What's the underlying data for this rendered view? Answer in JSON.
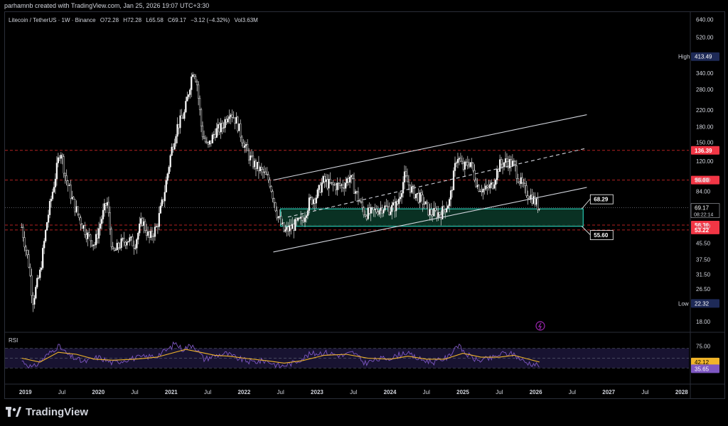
{
  "header": {
    "attribution": "parhamnb created with TradingView.com, Jan 25, 2026 19:07 UTC+3:30"
  },
  "legend": {
    "symbol": "Litecoin / TetherUS · 1W · Binance",
    "open": "O72.28",
    "high": "H72.28",
    "low": "L65.58",
    "close": "C69.17",
    "change": "−3.12 (−4.32%)",
    "volume": "Vol3.63M"
  },
  "colors": {
    "up": "#ffffff",
    "down": "#ffffff",
    "resistance_dash": "#b22222",
    "zone_fill": "#0b3d2c",
    "zone_border": "#26c6b0",
    "channel": "#d1d4dc",
    "rsi_line": "#7e57c2",
    "rsi_ma": "#f0b429",
    "high_tag": "#1e2a57",
    "red_tag": "#f23645",
    "rsi_ma_tag": "#f0b429",
    "rsi_tag": "#7e57c2"
  },
  "chart_data": {
    "type": "candlestick",
    "symbol": "LTCUSDT",
    "interval": "1W",
    "y_scale": "log",
    "y_ticks": [
      "640.00",
      "520.00",
      "420.00",
      "340.00",
      "280.00",
      "220.00",
      "180.00",
      "150.00",
      "120.00",
      "96.00",
      "84.00",
      "55.60",
      "45.50",
      "37.50",
      "31.50",
      "26.50",
      "18.00"
    ],
    "y_tick_values": [
      640,
      520,
      420,
      340,
      280,
      220,
      180,
      150,
      120,
      96,
      84,
      55.6,
      45.5,
      37.5,
      31.5,
      26.5,
      18
    ],
    "x_ticks": [
      "2019",
      "Jul",
      "2020",
      "Jul",
      "2021",
      "Jul",
      "2022",
      "Jul",
      "2023",
      "Jul",
      "2024",
      "Jul",
      "2025",
      "Jul",
      "2026",
      "Jul",
      "2027",
      "Jul",
      "2028"
    ],
    "x_tick_values": [
      2019.0,
      2019.5,
      2020.0,
      2020.5,
      2021.0,
      2021.5,
      2022.0,
      2022.5,
      2023.0,
      2023.5,
      2024.0,
      2024.5,
      2025.0,
      2025.5,
      2026.0,
      2026.5,
      2027.0,
      2027.5,
      2028.0
    ],
    "price_path": [
      [
        2018.95,
        55
      ],
      [
        2019.05,
        35
      ],
      [
        2019.1,
        23
      ],
      [
        2019.2,
        32
      ],
      [
        2019.3,
        60
      ],
      [
        2019.4,
        95
      ],
      [
        2019.48,
        140
      ],
      [
        2019.55,
        100
      ],
      [
        2019.65,
        75
      ],
      [
        2019.75,
        60
      ],
      [
        2019.85,
        50
      ],
      [
        2019.95,
        45
      ],
      [
        2020.05,
        62
      ],
      [
        2020.12,
        75
      ],
      [
        2020.2,
        40
      ],
      [
        2020.3,
        45
      ],
      [
        2020.4,
        48
      ],
      [
        2020.5,
        45
      ],
      [
        2020.6,
        60
      ],
      [
        2020.7,
        48
      ],
      [
        2020.8,
        55
      ],
      [
        2020.9,
        80
      ],
      [
        2021.0,
        135
      ],
      [
        2021.08,
        180
      ],
      [
        2021.18,
        210
      ],
      [
        2021.3,
        360
      ],
      [
        2021.35,
        310
      ],
      [
        2021.42,
        170
      ],
      [
        2021.5,
        140
      ],
      [
        2021.6,
        170
      ],
      [
        2021.7,
        180
      ],
      [
        2021.8,
        220
      ],
      [
        2021.9,
        190
      ],
      [
        2022.0,
        145
      ],
      [
        2022.1,
        120
      ],
      [
        2022.25,
        105
      ],
      [
        2022.35,
        95
      ],
      [
        2022.45,
        65
      ],
      [
        2022.55,
        52
      ],
      [
        2022.65,
        55
      ],
      [
        2022.8,
        60
      ],
      [
        2022.9,
        75
      ],
      [
        2023.0,
        80
      ],
      [
        2023.08,
        95
      ],
      [
        2023.2,
        90
      ],
      [
        2023.35,
        90
      ],
      [
        2023.45,
        100
      ],
      [
        2023.55,
        80
      ],
      [
        2023.65,
        65
      ],
      [
        2023.75,
        65
      ],
      [
        2023.9,
        70
      ],
      [
        2024.0,
        68
      ],
      [
        2024.1,
        72
      ],
      [
        2024.2,
        100
      ],
      [
        2024.3,
        85
      ],
      [
        2024.45,
        75
      ],
      [
        2024.55,
        65
      ],
      [
        2024.7,
        65
      ],
      [
        2024.82,
        75
      ],
      [
        2024.92,
        130
      ],
      [
        2025.0,
        110
      ],
      [
        2025.1,
        120
      ],
      [
        2025.2,
        90
      ],
      [
        2025.3,
        85
      ],
      [
        2025.4,
        90
      ],
      [
        2025.5,
        115
      ],
      [
        2025.6,
        120
      ],
      [
        2025.7,
        115
      ],
      [
        2025.78,
        95
      ],
      [
        2025.85,
        85
      ],
      [
        2025.95,
        78
      ],
      [
        2026.05,
        69.17
      ]
    ],
    "levels": [
      {
        "label": "136.39",
        "value": 136.39
      },
      {
        "label": "96.00",
        "value": 96.0
      },
      {
        "label": "56.36",
        "value": 56.36
      },
      {
        "label": "53.22",
        "value": 53.22
      }
    ],
    "current_price": {
      "label": "69.17",
      "value": 69.17,
      "countdown": "08:22:14"
    },
    "high_tag": {
      "label": "High",
      "value_label": "413.49",
      "value": 413.49
    },
    "low_tag": {
      "label": "Low",
      "value_label": "22.32",
      "value": 22.32
    },
    "zone": {
      "top": 68.29,
      "bottom": 55.6,
      "x_start": 2022.5,
      "x_end": 2026.65
    },
    "zone_callouts": [
      {
        "label": "68.29",
        "value": 68.29
      },
      {
        "label": "55.60",
        "value": 55.6
      }
    ],
    "channel": {
      "upper": [
        [
          2022.4,
          96
        ],
        [
          2026.7,
          208
        ]
      ],
      "middle": [
        [
          2022.6,
          62
        ],
        [
          2026.7,
          140
        ]
      ],
      "lower": [
        [
          2022.4,
          41
        ],
        [
          2026.7,
          88
        ]
      ]
    },
    "rsi": {
      "label": "RSI",
      "ticks": [
        "75.00",
        "25.00"
      ],
      "tick_values": [
        75,
        25
      ],
      "band": [
        30,
        70
      ],
      "rsi_value": {
        "label": "35.65",
        "value": 35.65
      },
      "ma_value": {
        "label": "42.12",
        "value": 42.12
      },
      "rsi_path": [
        [
          2018.95,
          45
        ],
        [
          2019.1,
          30
        ],
        [
          2019.25,
          50
        ],
        [
          2019.45,
          75
        ],
        [
          2019.6,
          55
        ],
        [
          2019.8,
          42
        ],
        [
          2020.0,
          52
        ],
        [
          2020.2,
          40
        ],
        [
          2020.4,
          48
        ],
        [
          2020.6,
          52
        ],
        [
          2020.8,
          55
        ],
        [
          2021.0,
          72
        ],
        [
          2021.05,
          82
        ],
        [
          2021.15,
          68
        ],
        [
          2021.3,
          78
        ],
        [
          2021.45,
          48
        ],
        [
          2021.6,
          55
        ],
        [
          2021.75,
          60
        ],
        [
          2021.9,
          50
        ],
        [
          2022.1,
          42
        ],
        [
          2022.3,
          45
        ],
        [
          2022.5,
          33
        ],
        [
          2022.7,
          42
        ],
        [
          2022.9,
          58
        ],
        [
          2023.1,
          62
        ],
        [
          2023.35,
          55
        ],
        [
          2023.5,
          62
        ],
        [
          2023.65,
          40
        ],
        [
          2023.85,
          48
        ],
        [
          2024.05,
          52
        ],
        [
          2024.2,
          62
        ],
        [
          2024.4,
          48
        ],
        [
          2024.6,
          42
        ],
        [
          2024.8,
          52
        ],
        [
          2024.92,
          78
        ],
        [
          2025.05,
          58
        ],
        [
          2025.2,
          45
        ],
        [
          2025.4,
          50
        ],
        [
          2025.55,
          60
        ],
        [
          2025.7,
          58
        ],
        [
          2025.85,
          42
        ],
        [
          2026.05,
          35.65
        ]
      ],
      "ma_path": [
        [
          2018.95,
          50
        ],
        [
          2019.2,
          42
        ],
        [
          2019.45,
          62
        ],
        [
          2019.7,
          58
        ],
        [
          2019.95,
          48
        ],
        [
          2020.2,
          46
        ],
        [
          2020.5,
          48
        ],
        [
          2020.8,
          52
        ],
        [
          2021.0,
          60
        ],
        [
          2021.2,
          68
        ],
        [
          2021.4,
          62
        ],
        [
          2021.6,
          56
        ],
        [
          2021.8,
          54
        ],
        [
          2022.0,
          50
        ],
        [
          2022.3,
          45
        ],
        [
          2022.55,
          40
        ],
        [
          2022.8,
          45
        ],
        [
          2023.1,
          56
        ],
        [
          2023.4,
          58
        ],
        [
          2023.7,
          50
        ],
        [
          2024.0,
          48
        ],
        [
          2024.25,
          54
        ],
        [
          2024.5,
          48
        ],
        [
          2024.75,
          48
        ],
        [
          2025.0,
          60
        ],
        [
          2025.25,
          52
        ],
        [
          2025.5,
          52
        ],
        [
          2025.7,
          56
        ],
        [
          2025.9,
          48
        ],
        [
          2026.05,
          42.12
        ]
      ]
    }
  },
  "footer": {
    "brand": "TradingView"
  }
}
